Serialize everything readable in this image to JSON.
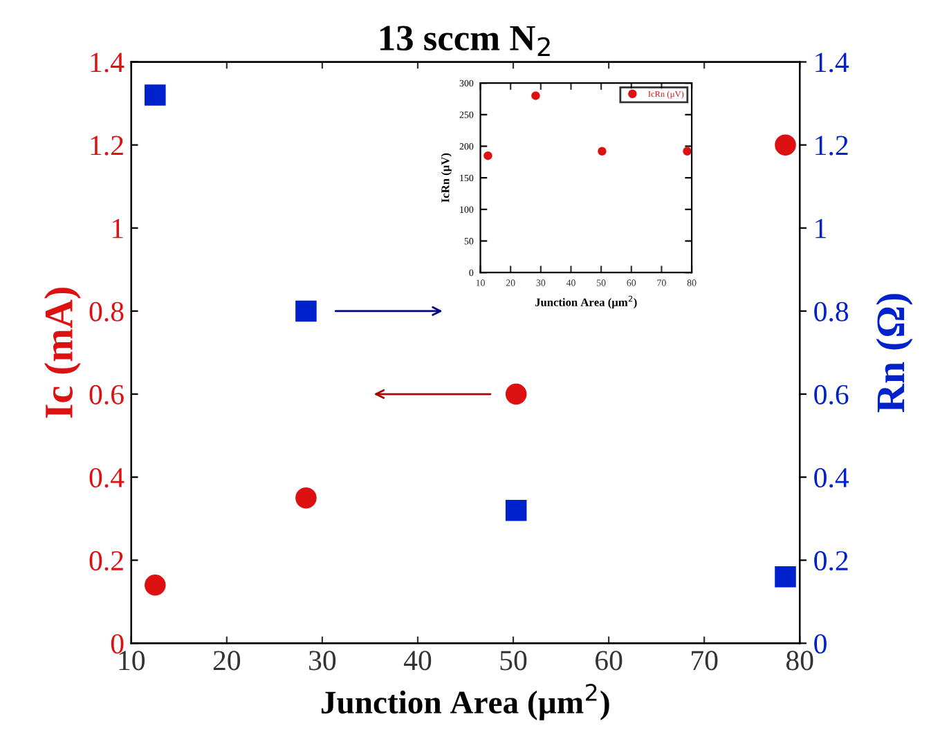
{
  "chart_data": [
    {
      "type": "scatter",
      "title": "13 sccm N$_{2}$",
      "xlabel": "Junction Area (µm$^{2}$)",
      "ylabel": "Ic (mA)",
      "y2label": "Rn (Ω)",
      "x": [
        12.5,
        28.3,
        50.3,
        78.5
      ],
      "series": [
        {
          "color": "#dd1111",
          "marker": "circle",
          "values": [
            0.14,
            0.35,
            0.6,
            1.2
          ]
        },
        {
          "color": "#0022cc",
          "marker": "square",
          "axis": "y2",
          "values": [
            1.32,
            0.8,
            0.32,
            0.16
          ]
        }
      ],
      "xlim": [
        10,
        80
      ],
      "xticks": [
        10,
        20,
        30,
        40,
        50,
        60,
        70,
        80
      ],
      "ylim": [
        0,
        1.4
      ],
      "yticks": [
        0,
        0.2,
        0.4,
        0.6,
        0.8,
        1,
        1.2,
        1.4
      ],
      "y2lim": [
        0,
        1.4
      ],
      "y2ticks": [
        0,
        0.2,
        0.4,
        0.6,
        0.8,
        1,
        1.2,
        1.4
      ],
      "grid": false,
      "legend": false
    },
    {
      "type": "scatter",
      "xlabel": "Junction Area (µm$^{2}$)",
      "ylabel": "IcRn (µV)",
      "x": [
        12.5,
        28.3,
        50.3,
        78.5
      ],
      "series": [
        {
          "name": "IcRn (µV)",
          "color": "#dd1111",
          "marker": "circle",
          "values": [
            185,
            280,
            192,
            192
          ]
        }
      ],
      "xlim": [
        10,
        80
      ],
      "xticks": [
        10,
        20,
        30,
        40,
        50,
        60,
        70,
        80
      ],
      "ylim": [
        0,
        300
      ],
      "yticks": [
        0,
        50,
        100,
        150,
        200,
        250,
        300
      ],
      "grid": false,
      "legend": "top right"
    }
  ]
}
